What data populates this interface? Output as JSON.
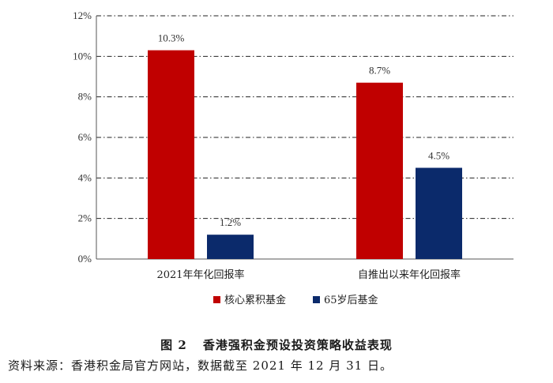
{
  "chart_data": {
    "type": "bar",
    "categories": [
      "2021年年化回报率",
      "自推出以来年化回报率"
    ],
    "series": [
      {
        "name": "核心累积基金",
        "color": "#c00000",
        "values": [
          10.3,
          8.7
        ],
        "labels": [
          "10.3%",
          "8.7%"
        ]
      },
      {
        "name": "65岁后基金",
        "color": "#0b2a6b",
        "values": [
          1.2,
          4.5
        ],
        "labels": [
          "1.2%",
          "4.5%"
        ]
      }
    ],
    "ylim": [
      0,
      12
    ],
    "yticks": [
      0,
      2,
      4,
      6,
      8,
      10,
      12
    ],
    "ytick_labels": [
      "0%",
      "2%",
      "4%",
      "6%",
      "8%",
      "10%",
      "12%"
    ],
    "grid": true,
    "legend_position": "bottom-center",
    "title": "",
    "xlabel": "",
    "ylabel": ""
  },
  "caption": {
    "figure_number": "图 2",
    "title": "香港强积金预设投资策略收益表现"
  },
  "source_note": "资料来源：香港积金局官方网站，数据截至 2021 年 12 月 31 日。"
}
